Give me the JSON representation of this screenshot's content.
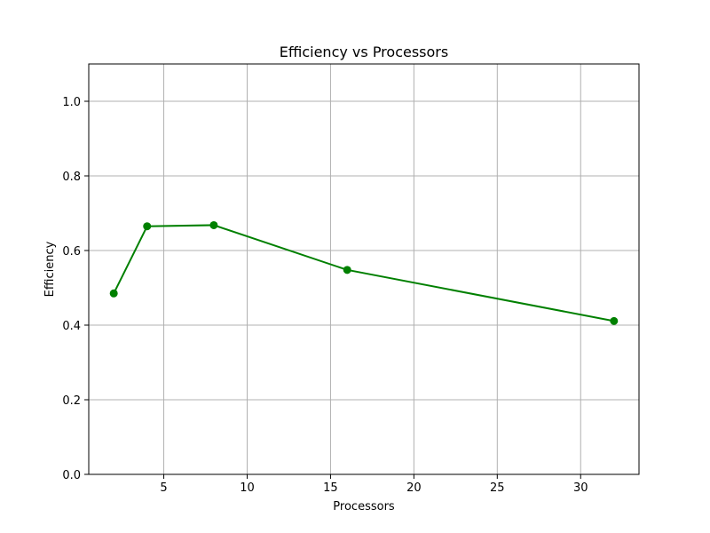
{
  "chart_data": {
    "type": "line",
    "title": "Efficiency vs Processors",
    "xlabel": "Processors",
    "ylabel": "Efficiency",
    "xlim": [
      0.5,
      33.5
    ],
    "ylim": [
      0.0,
      1.1
    ],
    "xticks": [
      5,
      10,
      15,
      20,
      25,
      30
    ],
    "yticks": [
      0.0,
      0.2,
      0.4,
      0.6,
      0.8,
      1.0
    ],
    "grid": true,
    "series": [
      {
        "color": "#008000",
        "marker": "circle",
        "x": [
          2,
          4,
          8,
          16,
          32
        ],
        "y": [
          0.485,
          0.665,
          0.668,
          0.548,
          0.411
        ]
      }
    ]
  }
}
